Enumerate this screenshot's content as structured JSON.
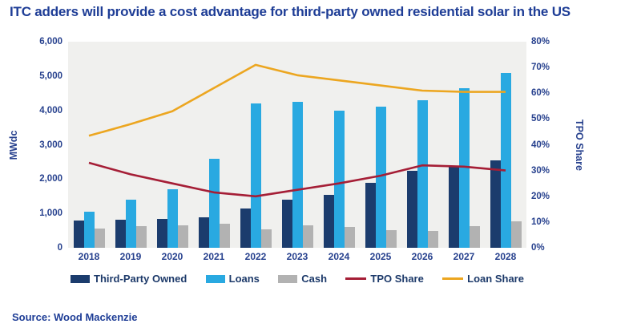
{
  "title": "ITC adders will provide a cost advantage for third-party owned residential solar in the US",
  "source": "Source: Wood Mackenzie",
  "colors": {
    "page_background": "#ffffff",
    "plot_background": "#f0f0ee",
    "title_blue": "#1e3d96",
    "axis_text_blue": "#27418e",
    "legend_text_navy": "#1d3a6a",
    "tpo_bar_navy": "#1b3c6d",
    "loans_bar_blue": "#29a9e1",
    "cash_bar_gray": "#b2b2b2",
    "tpo_share_line_red": "#a51e36",
    "loan_share_line_yellow": "#eca620"
  },
  "legend": {
    "items": [
      {
        "label": "Third-Party Owned",
        "swatch": "bar",
        "color": "#1b3c6d"
      },
      {
        "label": "Loans",
        "swatch": "bar",
        "color": "#29a9e1"
      },
      {
        "label": "Cash",
        "swatch": "bar",
        "color": "#b2b2b2"
      },
      {
        "label": "TPO Share",
        "swatch": "line",
        "color": "#a51e36"
      },
      {
        "label": "Loan Share",
        "swatch": "line",
        "color": "#eca620"
      }
    ]
  },
  "chart_data": {
    "type": "combo_bar_line",
    "title": "ITC adders will provide a cost advantage for third-party owned residential solar in the US",
    "categories": [
      "2018",
      "2019",
      "2020",
      "2021",
      "2022",
      "2023",
      "2024",
      "2025",
      "2026",
      "2027",
      "2028"
    ],
    "bar_series": [
      {
        "name": "Third-Party Owned",
        "axis": "left",
        "color": "#1b3c6d",
        "values": [
          800,
          820,
          830,
          900,
          1150,
          1400,
          1550,
          1900,
          2250,
          2350,
          2550
        ]
      },
      {
        "name": "Loans",
        "axis": "left",
        "color": "#29a9e1",
        "values": [
          1050,
          1400,
          1700,
          2600,
          4200,
          4250,
          4000,
          4100,
          4300,
          4650,
          5100
        ]
      },
      {
        "name": "Cash",
        "axis": "left",
        "color": "#b2b2b2",
        "values": [
          550,
          620,
          660,
          700,
          530,
          650,
          600,
          520,
          480,
          620,
          780
        ]
      }
    ],
    "line_series": [
      {
        "name": "TPO Share",
        "axis": "right",
        "color": "#a51e36",
        "values": [
          33,
          28.5,
          25,
          21.5,
          20,
          22.5,
          25,
          28,
          32,
          31.5,
          30
        ]
      },
      {
        "name": "Loan Share",
        "axis": "right",
        "color": "#eca620",
        "values": [
          43.5,
          48,
          53,
          62,
          71,
          67,
          65,
          63,
          61,
          60.5,
          60.5
        ]
      }
    ],
    "left_axis": {
      "label": "MWdc",
      "min": 0,
      "max": 6000,
      "step": 1000,
      "ticks": [
        "6,000",
        "5,000",
        "4,000",
        "3,000",
        "2,000",
        "1,000",
        "0"
      ]
    },
    "right_axis": {
      "label": "TPO Share",
      "min": 0,
      "max": 80,
      "step": 10,
      "ticks": [
        "80%",
        "70%",
        "60%",
        "50%",
        "40%",
        "30%",
        "20%",
        "10%",
        "0%"
      ]
    },
    "grid": false,
    "legend_position": "bottom"
  }
}
